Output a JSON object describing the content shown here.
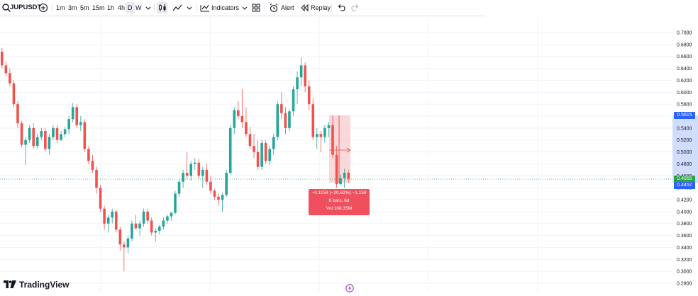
{
  "toolbar": {
    "symbol": "JUPUSDT",
    "timeframes": [
      "1m",
      "3m",
      "5m",
      "15m",
      "1h",
      "4h",
      "D",
      "W"
    ],
    "active_timeframe": "D",
    "indicators_label": "Indicators",
    "alert_label": "Alert",
    "replay_label": "Replay"
  },
  "chart_data": {
    "type": "candlestick",
    "symbol": "JUPUSDT",
    "interval": "D",
    "y_axis_ticks": [
      "0.7000",
      "0.6800",
      "0.6600",
      "0.6400",
      "0.6200",
      "0.6000",
      "0.5800",
      "0.5600",
      "0.5400",
      "0.5200",
      "0.5000",
      "0.4800",
      "0.4600",
      "0.4400",
      "0.4200",
      "0.4000",
      "0.3800",
      "0.3600",
      "0.3400",
      "0.3200",
      "0.3000",
      "0.2800"
    ],
    "ylim": [
      0.28,
      0.7
    ],
    "grid": true,
    "up_color": "#26a69a",
    "down_color": "#ef5350",
    "candles": [
      [
        0.668,
        0.674,
        0.64,
        0.645
      ],
      [
        0.645,
        0.652,
        0.626,
        0.632
      ],
      [
        0.632,
        0.64,
        0.61,
        0.615
      ],
      [
        0.615,
        0.62,
        0.575,
        0.58
      ],
      [
        0.58,
        0.585,
        0.54,
        0.548
      ],
      [
        0.548,
        0.552,
        0.508,
        0.512
      ],
      [
        0.512,
        0.525,
        0.478,
        0.52
      ],
      [
        0.52,
        0.545,
        0.515,
        0.54
      ],
      [
        0.54,
        0.548,
        0.505,
        0.51
      ],
      [
        0.51,
        0.53,
        0.505,
        0.525
      ],
      [
        0.525,
        0.54,
        0.52,
        0.535
      ],
      [
        0.535,
        0.54,
        0.5,
        0.505
      ],
      [
        0.505,
        0.53,
        0.495,
        0.525
      ],
      [
        0.525,
        0.545,
        0.52,
        0.54
      ],
      [
        0.54,
        0.545,
        0.515,
        0.52
      ],
      [
        0.52,
        0.535,
        0.518,
        0.53
      ],
      [
        0.53,
        0.542,
        0.525,
        0.538
      ],
      [
        0.538,
        0.56,
        0.53,
        0.555
      ],
      [
        0.555,
        0.582,
        0.55,
        0.575
      ],
      [
        0.575,
        0.58,
        0.54,
        0.545
      ],
      [
        0.545,
        0.56,
        0.535,
        0.55
      ],
      [
        0.55,
        0.555,
        0.5,
        0.505
      ],
      [
        0.505,
        0.51,
        0.48,
        0.485
      ],
      [
        0.485,
        0.495,
        0.465,
        0.47
      ],
      [
        0.47,
        0.475,
        0.43,
        0.44
      ],
      [
        0.44,
        0.445,
        0.4,
        0.405
      ],
      [
        0.405,
        0.41,
        0.37,
        0.38
      ],
      [
        0.38,
        0.395,
        0.365,
        0.39
      ],
      [
        0.39,
        0.405,
        0.38,
        0.4
      ],
      [
        0.4,
        0.402,
        0.365,
        0.37
      ],
      [
        0.37,
        0.375,
        0.335,
        0.345
      ],
      [
        0.345,
        0.35,
        0.3,
        0.34
      ],
      [
        0.34,
        0.36,
        0.33,
        0.355
      ],
      [
        0.355,
        0.385,
        0.35,
        0.38
      ],
      [
        0.38,
        0.395,
        0.37,
        0.372
      ],
      [
        0.372,
        0.385,
        0.36,
        0.38
      ],
      [
        0.38,
        0.405,
        0.375,
        0.4
      ],
      [
        0.4,
        0.405,
        0.38,
        0.385
      ],
      [
        0.385,
        0.39,
        0.36,
        0.365
      ],
      [
        0.365,
        0.372,
        0.35,
        0.368
      ],
      [
        0.368,
        0.378,
        0.362,
        0.375
      ],
      [
        0.375,
        0.39,
        0.37,
        0.385
      ],
      [
        0.385,
        0.395,
        0.38,
        0.392
      ],
      [
        0.392,
        0.4,
        0.385,
        0.398
      ],
      [
        0.398,
        0.435,
        0.395,
        0.43
      ],
      [
        0.43,
        0.455,
        0.425,
        0.45
      ],
      [
        0.45,
        0.47,
        0.44,
        0.465
      ],
      [
        0.465,
        0.5,
        0.455,
        0.46
      ],
      [
        0.46,
        0.485,
        0.452,
        0.48
      ],
      [
        0.48,
        0.49,
        0.47,
        0.482
      ],
      [
        0.482,
        0.488,
        0.455,
        0.46
      ],
      [
        0.46,
        0.475,
        0.44,
        0.47
      ],
      [
        0.47,
        0.48,
        0.445,
        0.45
      ],
      [
        0.45,
        0.46,
        0.43,
        0.435
      ],
      [
        0.435,
        0.438,
        0.42,
        0.425
      ],
      [
        0.425,
        0.43,
        0.41,
        0.42
      ],
      [
        0.42,
        0.432,
        0.4,
        0.428
      ],
      [
        0.428,
        0.47,
        0.425,
        0.465
      ],
      [
        0.465,
        0.545,
        0.462,
        0.54
      ],
      [
        0.54,
        0.575,
        0.53,
        0.57
      ],
      [
        0.57,
        0.585,
        0.555,
        0.56
      ],
      [
        0.56,
        0.605,
        0.54,
        0.55
      ],
      [
        0.55,
        0.575,
        0.525,
        0.53
      ],
      [
        0.53,
        0.542,
        0.505,
        0.51
      ],
      [
        0.51,
        0.53,
        0.49,
        0.5
      ],
      [
        0.5,
        0.52,
        0.47,
        0.475
      ],
      [
        0.475,
        0.52,
        0.47,
        0.515
      ],
      [
        0.515,
        0.52,
        0.48,
        0.485
      ],
      [
        0.485,
        0.51,
        0.478,
        0.505
      ],
      [
        0.505,
        0.53,
        0.495,
        0.525
      ],
      [
        0.525,
        0.585,
        0.52,
        0.58
      ],
      [
        0.58,
        0.6,
        0.555,
        0.565
      ],
      [
        0.565,
        0.575,
        0.53,
        0.54
      ],
      [
        0.54,
        0.572,
        0.535,
        0.568
      ],
      [
        0.568,
        0.61,
        0.56,
        0.605
      ],
      [
        0.605,
        0.635,
        0.58,
        0.625
      ],
      [
        0.625,
        0.658,
        0.61,
        0.645
      ],
      [
        0.645,
        0.65,
        0.6,
        0.61
      ],
      [
        0.61,
        0.62,
        0.57,
        0.58
      ],
      [
        0.58,
        0.59,
        0.52,
        0.525
      ],
      [
        0.525,
        0.54,
        0.505,
        0.53
      ],
      [
        0.53,
        0.535,
        0.5,
        0.525
      ],
      [
        0.525,
        0.545,
        0.515,
        0.54
      ],
      [
        0.54,
        0.55,
        0.525,
        0.545
      ],
      [
        0.545,
        0.562,
        0.49,
        0.495
      ],
      [
        0.495,
        0.51,
        0.44,
        0.446
      ],
      [
        0.446,
        0.462,
        0.445,
        0.456
      ],
      [
        0.456,
        0.472,
        0.44,
        0.465
      ],
      [
        0.465,
        0.47,
        0.448,
        0.455
      ]
    ],
    "current_price": "0.4555",
    "low_price": "0.4457",
    "high_price": "0.5615",
    "measure": {
      "line1": "−0.1158 (−20.62%) −1,158",
      "line2": "6 bars, 6d",
      "line3": "Vol 108.35M"
    }
  },
  "branding": {
    "logo_text": "TradingView"
  },
  "colors": {
    "accent": "#2962ff",
    "measure_red": "#f0505e",
    "current_green": "#2e9e4c"
  }
}
